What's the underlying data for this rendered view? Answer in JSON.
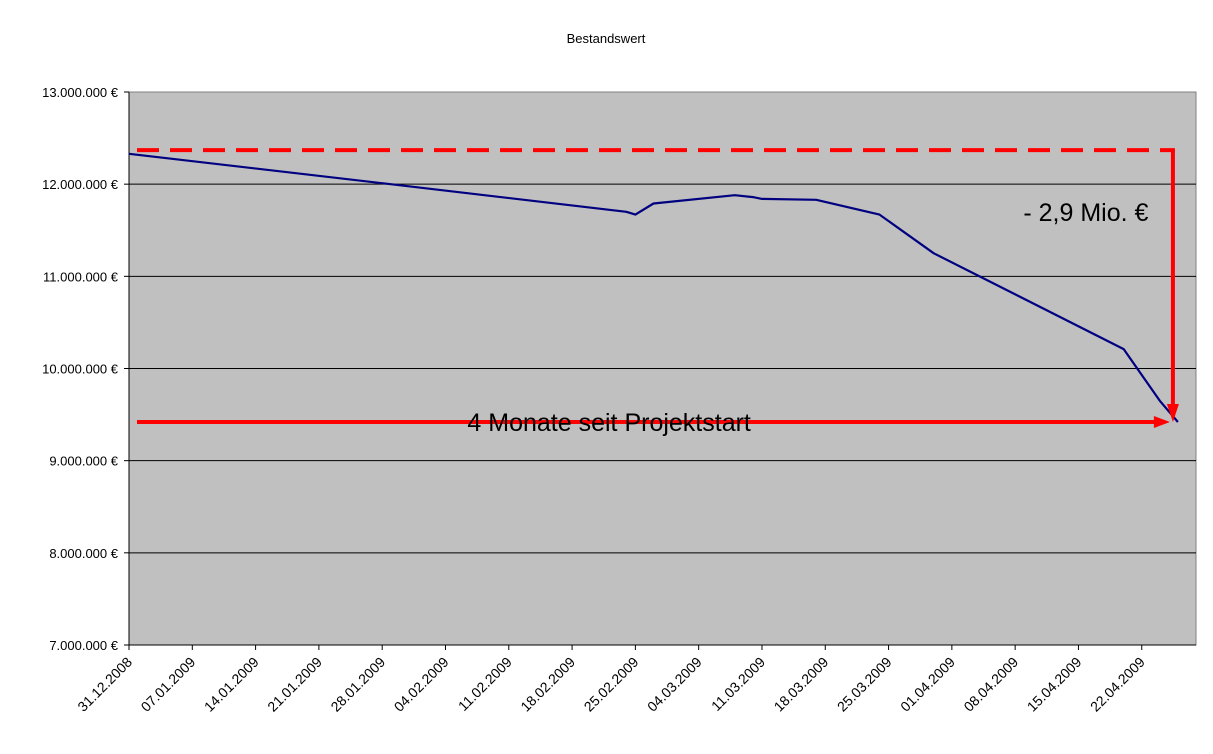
{
  "chart_data": {
    "type": "line",
    "title": "Bestandswert",
    "xlabel": "",
    "ylabel": "",
    "ylim": [
      7000000,
      13000000
    ],
    "yticks": [
      7000000,
      8000000,
      9000000,
      10000000,
      11000000,
      12000000,
      13000000
    ],
    "ytick_labels": [
      "7.000.000 €",
      "8.000.000 €",
      "9.000.000 €",
      "10.000.000 €",
      "11.000.000 €",
      "12.000.000 €",
      "13.000.000 €"
    ],
    "xlim": [
      "2008-12-31",
      "2009-04-28"
    ],
    "xticks": [
      "2008-12-31",
      "2009-01-07",
      "2009-01-14",
      "2009-01-21",
      "2009-01-28",
      "2009-02-04",
      "2009-02-11",
      "2009-02-18",
      "2009-02-25",
      "2009-03-04",
      "2009-03-11",
      "2009-03-18",
      "2009-03-25",
      "2009-04-01",
      "2009-04-08",
      "2009-04-15",
      "2009-04-22"
    ],
    "xtick_labels": [
      "31.12.2008",
      "07.01.2009",
      "14.01.2009",
      "21.01.2009",
      "28.01.2009",
      "04.02.2009",
      "11.02.2009",
      "18.02.2009",
      "25.02.2009",
      "04.03.2009",
      "11.03.2009",
      "18.03.2009",
      "25.03.2009",
      "01.04.2009",
      "08.04.2009",
      "15.04.2009",
      "22.04.2009"
    ],
    "grid": true,
    "plot_background": "#c0c0c0",
    "series": [
      {
        "color": "#000080",
        "points": [
          {
            "x": "2008-12-31",
            "y": 12330000
          },
          {
            "x": "2009-01-28",
            "y": 12010000
          },
          {
            "x": "2009-02-24",
            "y": 11700000
          },
          {
            "x": "2009-02-25",
            "y": 11670000
          },
          {
            "x": "2009-02-27",
            "y": 11790000
          },
          {
            "x": "2009-03-08",
            "y": 11880000
          },
          {
            "x": "2009-03-10",
            "y": 11860000
          },
          {
            "x": "2009-03-11",
            "y": 11840000
          },
          {
            "x": "2009-03-17",
            "y": 11830000
          },
          {
            "x": "2009-03-24",
            "y": 11670000
          },
          {
            "x": "2009-03-30",
            "y": 11250000
          },
          {
            "x": "2009-04-20",
            "y": 10210000
          },
          {
            "x": "2009-04-24",
            "y": 9650000
          },
          {
            "x": "2009-04-26",
            "y": 9420000
          }
        ]
      }
    ],
    "annotations": {
      "loss_text": "- 2,9 Mio. €",
      "duration_text": "4 Monate seit Projektstart",
      "reference_level": 12370000,
      "end_level": 9420000,
      "start_date": "2008-12-31",
      "end_date": "2009-04-26",
      "color": "#ff0000"
    }
  }
}
